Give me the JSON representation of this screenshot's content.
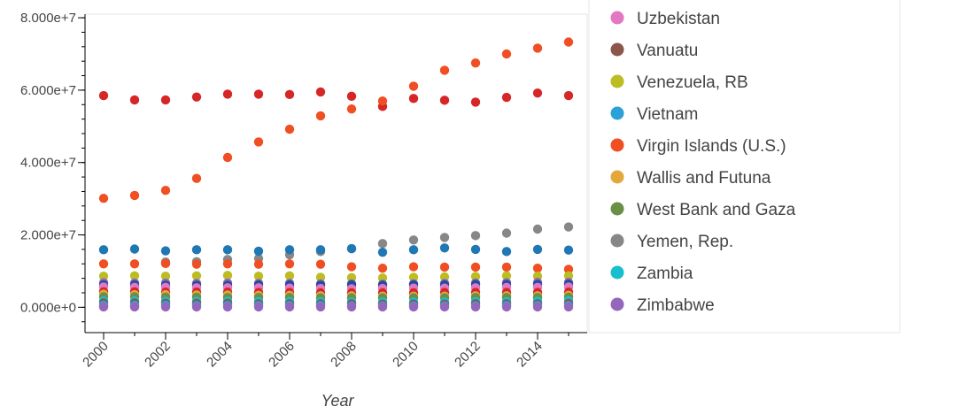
{
  "chart_data": {
    "type": "scatter",
    "xlabel": "Year",
    "ylabel": "",
    "xlim": [
      1999.4,
      2015.6
    ],
    "ylim": [
      -7000000,
      81000000
    ],
    "x": [
      2000,
      2001,
      2002,
      2003,
      2004,
      2005,
      2006,
      2007,
      2008,
      2009,
      2010,
      2011,
      2012,
      2013,
      2014,
      2015
    ],
    "x_ticks": [
      "2000",
      "2002",
      "2004",
      "2006",
      "2008",
      "2010",
      "2012",
      "2014"
    ],
    "y_ticks": [
      "0.000e+0",
      "2.000e+7",
      "4.000e+7",
      "6.000e+7",
      "8.000e+7"
    ],
    "y_tick_values": [
      0,
      20000000,
      40000000,
      60000000,
      80000000
    ],
    "legend": {
      "placement": "right",
      "entries": [
        {
          "name": "Uzbekistan",
          "color": "#e377c2"
        },
        {
          "name": "Vanuatu",
          "color": "#8c564b"
        },
        {
          "name": "Venezuela, RB",
          "color": "#bcbd22"
        },
        {
          "name": "Vietnam",
          "color": "#2ca0d8"
        },
        {
          "name": "Virgin Islands (U.S.)",
          "color": "#f04e23"
        },
        {
          "name": "Wallis and Futuna",
          "color": "#e3a83a"
        },
        {
          "name": "West Bank and Gaza",
          "color": "#6a8f46"
        },
        {
          "name": "Yemen, Rep.",
          "color": "#878787"
        },
        {
          "name": "Zambia",
          "color": "#17becf"
        },
        {
          "name": "Zimbabwe",
          "color": "#9467bd"
        }
      ]
    },
    "series": [
      {
        "color": "#d62728",
        "values": [
          58500000,
          57300000,
          57300000,
          58100000,
          58900000,
          58900000,
          58800000,
          59500000,
          58300000,
          55500000,
          57700000,
          57200000,
          56700000,
          58000000,
          59200000,
          58500000
        ]
      },
      {
        "color": "#f04e23",
        "values": [
          30100000,
          30900000,
          32300000,
          35600000,
          41400000,
          45700000,
          49200000,
          52900000,
          54800000,
          57000000,
          61100000,
          65500000,
          67500000,
          70000000,
          71600000,
          73300000
        ]
      },
      {
        "color": "#878787",
        "values": [
          300000,
          300000,
          12500000,
          12600000,
          13200000,
          13500000,
          14500000,
          15400000,
          16200000,
          17600000,
          18600000,
          19300000,
          19800000,
          20500000,
          21600000,
          22200000
        ]
      },
      {
        "color": "#1f77b4",
        "values": [
          15900000,
          16100000,
          15600000,
          15900000,
          15900000,
          15500000,
          15900000,
          15900000,
          16200000,
          15200000,
          15900000,
          16400000,
          16000000,
          15400000,
          16000000,
          15800000
        ]
      },
      {
        "color": "#f04e23",
        "values": [
          12000000,
          12000000,
          12100000,
          11900000,
          12000000,
          11900000,
          12000000,
          11900000,
          11200000,
          10800000,
          11200000,
          11100000,
          11100000,
          11100000,
          10800000,
          10500000
        ]
      },
      {
        "color": "#bcbd22",
        "values": [
          8600000,
          8700000,
          8600000,
          8700000,
          8800000,
          8600000,
          8700000,
          8300000,
          8200000,
          8100000,
          8300000,
          8400000,
          8500000,
          8700000,
          8600000,
          8700000
        ]
      },
      {
        "color": "#9467bd",
        "values": [
          6800000,
          6700000,
          6700000,
          6600000,
          6700000,
          6600000,
          6600000,
          6500000,
          6500000,
          6400000,
          6500000,
          6600000,
          6700000,
          6800000,
          6900000,
          6900000
        ]
      },
      {
        "color": "#1f4e9c",
        "values": [
          6200000,
          6200000,
          6100000,
          6100000,
          6100000,
          6200000,
          6200000,
          6100000,
          6200000,
          6100000,
          6200000,
          6200000,
          6300000,
          6300000,
          6300000,
          6400000
        ]
      },
      {
        "color": "#e377c2",
        "values": [
          5600000,
          5500000,
          5500000,
          5400000,
          5400000,
          5400000,
          5300000,
          5200000,
          5100000,
          5200000,
          5300000,
          5300000,
          5400000,
          5500000,
          5500000,
          5600000
        ]
      },
      {
        "color": "#d62728",
        "values": [
          4300000,
          4300000,
          4200000,
          4200000,
          4200000,
          4100000,
          4100000,
          4000000,
          4000000,
          4000000,
          4000000,
          4100000,
          4100000,
          4100000,
          4100000,
          4200000
        ]
      },
      {
        "color": "#e3a83a",
        "values": [
          3600000,
          3500000,
          3500000,
          3400000,
          3400000,
          3300000,
          3300000,
          3200000,
          3200000,
          3100000,
          3100000,
          3100000,
          3200000,
          3200000,
          3200000,
          3300000
        ]
      },
      {
        "color": "#6a8f46",
        "values": [
          2900000,
          2900000,
          2800000,
          2800000,
          2700000,
          2700000,
          2700000,
          2600000,
          2600000,
          2600000,
          2600000,
          2600000,
          2700000,
          2700000,
          2700000,
          2800000
        ]
      },
      {
        "color": "#17becf",
        "values": [
          1800000,
          1800000,
          1700000,
          1700000,
          1700000,
          1600000,
          1600000,
          1600000,
          1500000,
          1500000,
          1500000,
          1500000,
          1600000,
          1600000,
          1700000,
          1800000
        ]
      },
      {
        "color": "#8c564b",
        "values": [
          1200000,
          1200000,
          1100000,
          1100000,
          1100000,
          1000000,
          1000000,
          1000000,
          1000000,
          900000,
          900000,
          900000,
          1000000,
          1000000,
          1000000,
          1100000
        ]
      },
      {
        "color": "#2ca0d8",
        "values": [
          600000,
          600000,
          600000,
          500000,
          500000,
          500000,
          500000,
          500000,
          400000,
          400000,
          400000,
          400000,
          400000,
          500000,
          500000,
          500000
        ]
      },
      {
        "color": "#9467bd",
        "values": [
          100000,
          100000,
          100000,
          100000,
          100000,
          100000,
          100000,
          100000,
          100000,
          100000,
          100000,
          100000,
          100000,
          100000,
          100000,
          100000
        ]
      }
    ]
  }
}
